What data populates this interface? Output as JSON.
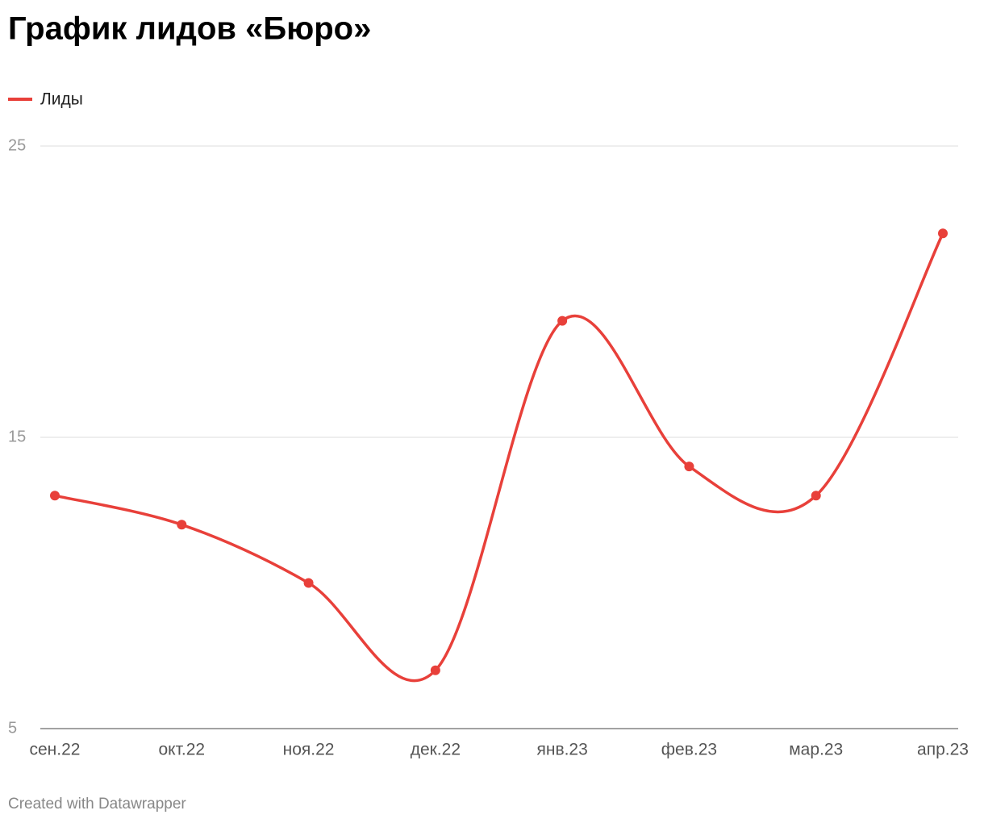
{
  "chart_data": {
    "type": "line",
    "title": "График лидов «Бюро»",
    "categories": [
      "сен.22",
      "окт.22",
      "ноя.22",
      "дек.22",
      "янв.23",
      "фев.23",
      "мар.23",
      "апр.23"
    ],
    "series": [
      {
        "name": "Лиды",
        "color": "#e8403a",
        "values": [
          13,
          12,
          10,
          7,
          19,
          14,
          13,
          22
        ]
      }
    ],
    "ylim": [
      5,
      25
    ],
    "yticks": [
      5,
      15,
      25
    ],
    "grid": true
  },
  "footer": "Created with Datawrapper"
}
